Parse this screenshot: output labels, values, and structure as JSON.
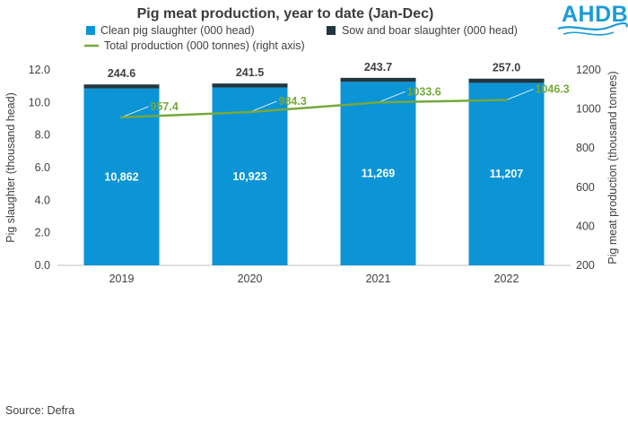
{
  "chart_data": {
    "type": "bar",
    "title": "Pig meat production, year to date (Jan-Dec)",
    "categories": [
      "2019",
      "2020",
      "2021",
      "2022"
    ],
    "series": [
      {
        "name": "Clean pig slaughter (000 head)",
        "kind": "stacked-bar",
        "axis": "left",
        "color": "#0b94d6",
        "values": [
          10.862,
          10.923,
          11.269,
          11.207
        ],
        "labels": [
          "10,862",
          "10,923",
          "11,269",
          "11,207"
        ]
      },
      {
        "name": "Sow and boar slaughter (000 head)",
        "kind": "stacked-bar",
        "axis": "left",
        "color": "#21363f",
        "values": [
          0.2446,
          0.2415,
          0.2437,
          0.257
        ],
        "labels": [
          "244.6",
          "241.5",
          "243.7",
          "257.0"
        ]
      },
      {
        "name": "Total production (000 tonnes) (right axis)",
        "kind": "line",
        "axis": "right",
        "color": "#76a83b",
        "values": [
          957.4,
          984.3,
          1033.6,
          1046.3
        ],
        "labels": [
          "957.4",
          "984.3",
          "1033.6",
          "1046.3"
        ]
      }
    ],
    "ylabel": "Pig slaughter (thousand head)",
    "ylim": [
      0,
      12
    ],
    "yticks": [
      "0.0",
      "2.0",
      "4.0",
      "6.0",
      "8.0",
      "10.0",
      "12.0"
    ],
    "y2label": "Pig meat production (thousand tonnes)",
    "y2lim": [
      200,
      1200
    ],
    "y2ticks": [
      "200",
      "400",
      "600",
      "800",
      "1000",
      "1200"
    ],
    "legend_position": "top",
    "grid": false
  },
  "source": "Source: Defra",
  "logo": {
    "text": "AHDB",
    "color": "#1a9bd7"
  }
}
